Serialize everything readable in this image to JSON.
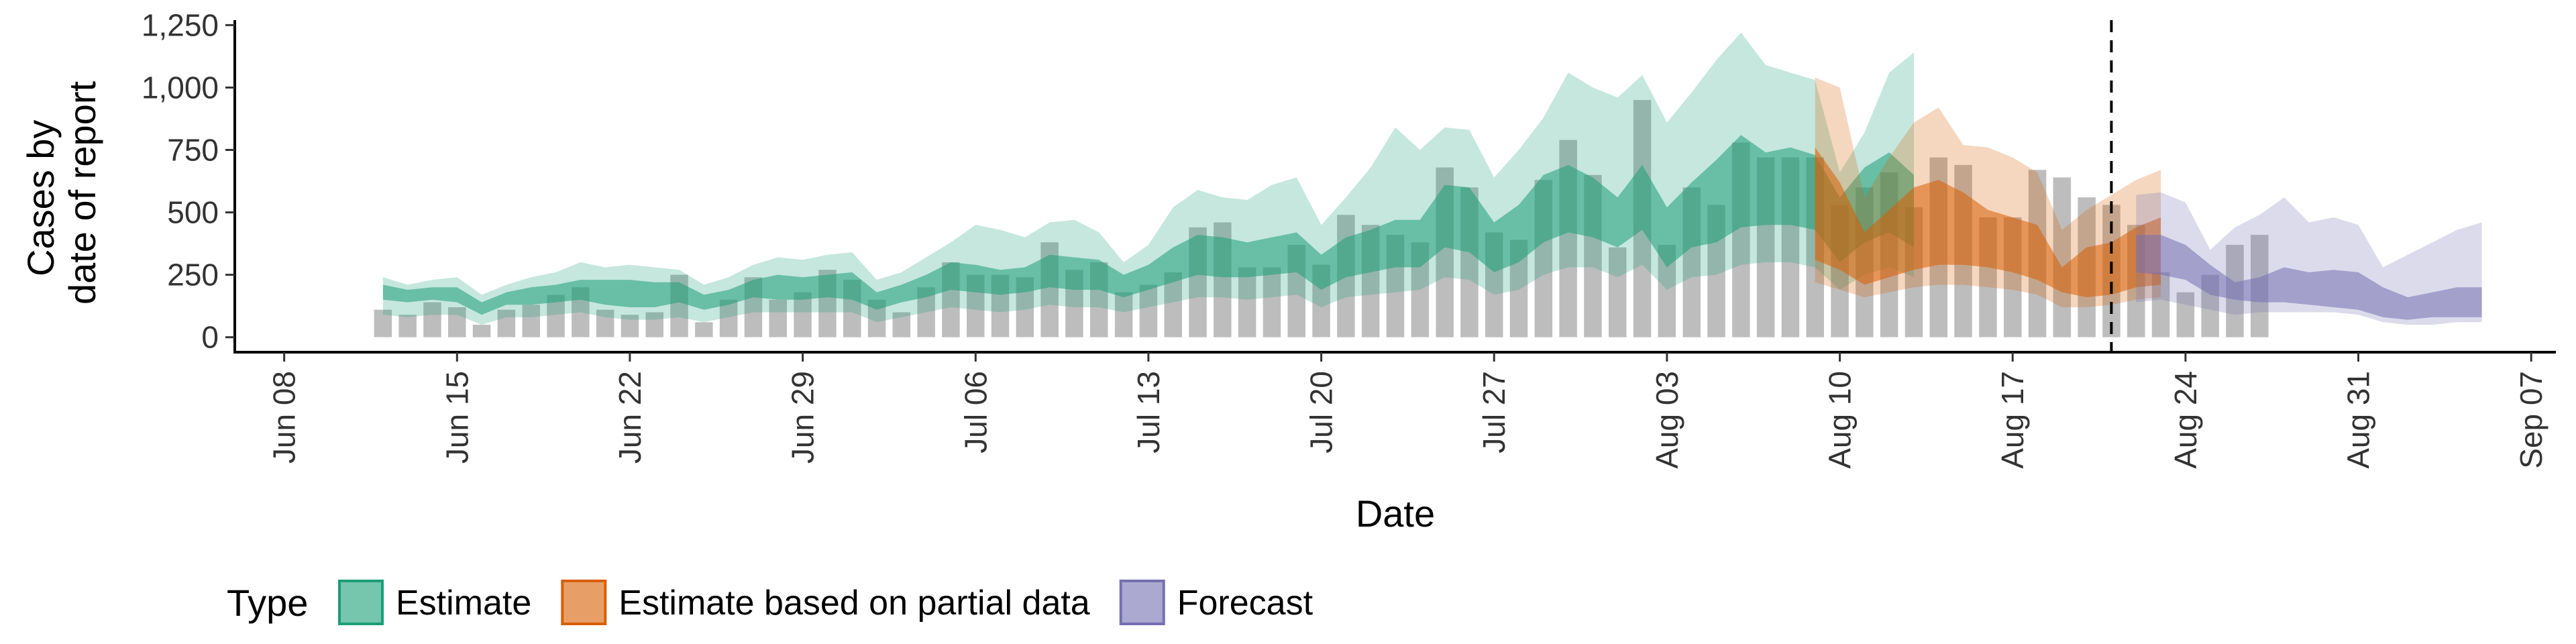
{
  "chart_data": {
    "type": "area",
    "title": "",
    "xlabel": "Date",
    "ylabel_lines": [
      "Cases by",
      "date of report"
    ],
    "xlim": [
      "2020-06-06",
      "2020-09-08"
    ],
    "ylim": [
      -60,
      1270
    ],
    "x_ticks": [
      {
        "date": "2020-06-08",
        "label": "Jun 08"
      },
      {
        "date": "2020-06-15",
        "label": "Jun 15"
      },
      {
        "date": "2020-06-22",
        "label": "Jun 22"
      },
      {
        "date": "2020-06-29",
        "label": "Jun 29"
      },
      {
        "date": "2020-07-06",
        "label": "Jul 06"
      },
      {
        "date": "2020-07-13",
        "label": "Jul 13"
      },
      {
        "date": "2020-07-20",
        "label": "Jul 20"
      },
      {
        "date": "2020-07-27",
        "label": "Jul 27"
      },
      {
        "date": "2020-08-03",
        "label": "Aug 03"
      },
      {
        "date": "2020-08-10",
        "label": "Aug 10"
      },
      {
        "date": "2020-08-17",
        "label": "Aug 17"
      },
      {
        "date": "2020-08-24",
        "label": "Aug 24"
      },
      {
        "date": "2020-08-31",
        "label": "Aug 31"
      },
      {
        "date": "2020-09-07",
        "label": "Sep 07"
      }
    ],
    "y_ticks": [
      {
        "value": 0,
        "label": "0"
      },
      {
        "value": 250,
        "label": "250"
      },
      {
        "value": 500,
        "label": "500"
      },
      {
        "value": 750,
        "label": "750"
      },
      {
        "value": 1000,
        "label": "1,000"
      },
      {
        "value": 1250,
        "label": "1,250"
      }
    ],
    "vline_date": "2020-08-21",
    "bar_color": "#bdbdbd",
    "bars": {
      "start": "2020-06-12",
      "values": [
        110,
        90,
        140,
        120,
        50,
        110,
        130,
        170,
        200,
        110,
        90,
        100,
        250,
        60,
        150,
        240,
        150,
        180,
        270,
        230,
        150,
        100,
        200,
        300,
        250,
        250,
        240,
        380,
        270,
        300,
        180,
        210,
        260,
        440,
        460,
        280,
        280,
        370,
        290,
        490,
        450,
        410,
        380,
        680,
        600,
        420,
        390,
        630,
        790,
        650,
        360,
        950,
        370,
        600,
        530,
        780,
        720,
        720,
        720,
        530,
        600,
        660,
        520,
        720,
        690,
        480,
        480,
        670,
        640,
        560,
        530,
        450,
        260,
        180,
        250,
        370,
        410
      ]
    },
    "series": [
      {
        "name": "Estimate",
        "color": "#1b9e77",
        "start": "2020-06-12",
        "inner_low": [
          150,
          140,
          150,
          140,
          90,
          130,
          130,
          140,
          150,
          130,
          120,
          120,
          140,
          110,
          130,
          160,
          150,
          150,
          160,
          150,
          110,
          140,
          160,
          190,
          180,
          170,
          180,
          200,
          190,
          190,
          160,
          190,
          220,
          250,
          240,
          240,
          250,
          260,
          190,
          240,
          260,
          280,
          280,
          360,
          340,
          260,
          300,
          380,
          420,
          400,
          360,
          430,
          280,
          360,
          380,
          440,
          450,
          450,
          430,
          300,
          380,
          420,
          360
        ],
        "inner_high": [
          210,
          190,
          200,
          200,
          140,
          180,
          200,
          210,
          230,
          230,
          230,
          220,
          220,
          170,
          190,
          230,
          250,
          240,
          250,
          260,
          180,
          210,
          250,
          300,
          290,
          270,
          280,
          330,
          320,
          310,
          250,
          290,
          360,
          410,
          400,
          380,
          400,
          420,
          330,
          400,
          430,
          470,
          470,
          610,
          600,
          460,
          530,
          650,
          690,
          640,
          560,
          690,
          520,
          620,
          710,
          810,
          740,
          760,
          730,
          560,
          680,
          740,
          650
        ],
        "outer_low": [
          90,
          80,
          90,
          90,
          50,
          80,
          80,
          90,
          100,
          80,
          70,
          70,
          80,
          60,
          80,
          100,
          100,
          100,
          100,
          100,
          60,
          80,
          100,
          120,
          110,
          100,
          110,
          130,
          120,
          120,
          100,
          120,
          140,
          160,
          160,
          150,
          160,
          170,
          120,
          160,
          170,
          180,
          190,
          240,
          230,
          170,
          190,
          250,
          280,
          280,
          240,
          290,
          190,
          240,
          250,
          290,
          300,
          300,
          280,
          190,
          250,
          280,
          240
        ],
        "outer_high": [
          240,
          210,
          230,
          240,
          170,
          210,
          240,
          260,
          300,
          280,
          290,
          280,
          270,
          210,
          240,
          290,
          320,
          310,
          330,
          340,
          230,
          260,
          320,
          380,
          450,
          430,
          400,
          460,
          470,
          420,
          300,
          370,
          520,
          590,
          560,
          550,
          610,
          640,
          450,
          560,
          680,
          840,
          750,
          840,
          830,
          640,
          750,
          880,
          1060,
          1000,
          960,
          1050,
          860,
          980,
          1110,
          1220,
          1090,
          1060,
          1030,
          660,
          820,
          1060,
          1140
        ]
      },
      {
        "name": "Estimate based on partial data",
        "color": "#d95f02",
        "start": "2020-08-09",
        "inner_low": [
          310,
          270,
          210,
          240,
          270,
          290,
          290,
          280,
          260,
          230,
          180,
          160,
          170,
          200,
          210
        ],
        "inner_high": [
          760,
          620,
          420,
          510,
          600,
          630,
          580,
          510,
          480,
          450,
          280,
          360,
          380,
          440,
          480
        ],
        "outer_low": [
          220,
          190,
          160,
          180,
          200,
          210,
          210,
          200,
          190,
          170,
          120,
          120,
          130,
          150,
          160
        ],
        "outer_high": [
          1040,
          1000,
          560,
          720,
          860,
          920,
          770,
          760,
          720,
          660,
          430,
          510,
          570,
          630,
          670
        ]
      },
      {
        "name": "Forecast",
        "color": "#7570b3",
        "start": "2020-08-22",
        "inner_low": [
          260,
          250,
          230,
          170,
          150,
          140,
          140,
          130,
          120,
          110,
          80,
          70,
          80,
          80,
          80
        ],
        "inner_high": [
          410,
          410,
          370,
          290,
          220,
          240,
          280,
          260,
          270,
          260,
          200,
          160,
          180,
          200,
          200
        ],
        "outer_low": [
          140,
          150,
          130,
          110,
          90,
          100,
          100,
          100,
          100,
          90,
          60,
          50,
          50,
          60,
          60
        ],
        "outer_high": [
          570,
          580,
          540,
          350,
          440,
          490,
          560,
          460,
          480,
          450,
          280,
          330,
          380,
          430,
          460
        ]
      }
    ],
    "legend": {
      "title": "Type",
      "placement": "bottom",
      "items": [
        {
          "label": "Estimate",
          "color": "#1b9e77"
        },
        {
          "label": "Estimate based on partial data",
          "color": "#d95f02"
        },
        {
          "label": "Forecast",
          "color": "#7570b3"
        }
      ]
    }
  }
}
